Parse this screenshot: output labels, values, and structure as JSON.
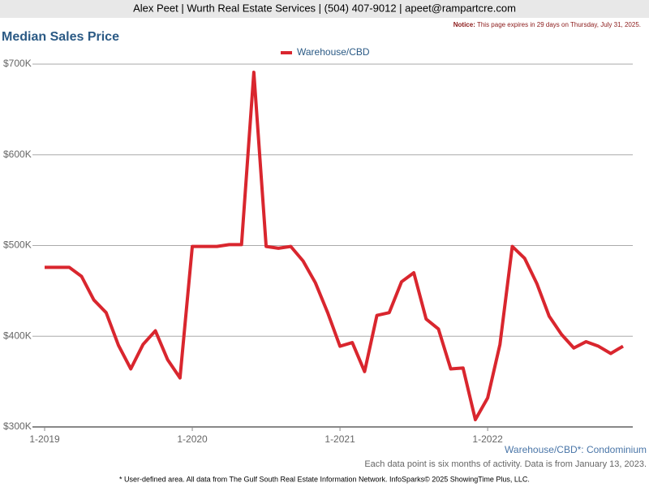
{
  "header": {
    "text": "Alex Peet | Wurth Real Estate Services | (504) 407-9012 | apeet@rampartcre.com"
  },
  "notice": {
    "label": "Notice:",
    "text": "This page expires in 29 days on Thursday, July 31, 2025."
  },
  "chart_data": {
    "type": "line",
    "title": "Median Sales Price",
    "categories": [
      "1-2019",
      null,
      null,
      null,
      null,
      null,
      null,
      null,
      null,
      null,
      null,
      null,
      "1-2020",
      null,
      null,
      null,
      null,
      null,
      null,
      null,
      null,
      null,
      null,
      null,
      "1-2021",
      null,
      null,
      null,
      null,
      null,
      null,
      null,
      null,
      null,
      null,
      null,
      "1-2022",
      null,
      null,
      null,
      null,
      null,
      null,
      null,
      null,
      null,
      null,
      null
    ],
    "series": [
      {
        "name": "Warehouse/CBD",
        "color": "#d9262e",
        "values": [
          476000,
          476000,
          476000,
          466000,
          440000,
          426000,
          390000,
          364000,
          391000,
          406000,
          374000,
          354000,
          499000,
          499000,
          499000,
          501000,
          501000,
          691000,
          499000,
          497000,
          499000,
          483000,
          459000,
          426000,
          389000,
          393000,
          361000,
          423000,
          426000,
          460000,
          470000,
          419000,
          408000,
          364000,
          365000,
          308000,
          332000,
          391000,
          499000,
          486000,
          458000,
          422000,
          402000,
          387000,
          394000,
          389000,
          381000,
          389000
        ]
      }
    ],
    "ylim": [
      300000,
      700000
    ],
    "yticks": [
      {
        "value": 300000,
        "label": "$300K"
      },
      {
        "value": 400000,
        "label": "$400K"
      },
      {
        "value": 500000,
        "label": "$500K"
      },
      {
        "value": 600000,
        "label": "$600K"
      },
      {
        "value": 700000,
        "label": "$700K"
      }
    ],
    "grid": true,
    "legend": "top",
    "area_label": "Warehouse/CBD*: Condominium",
    "note": "Each data point is six months of activity. Data is from January 13, 2023."
  },
  "footer": {
    "text": "* User-defined area. All data from The Gulf South Real Estate Information Network. InfoSparks© 2025 ShowingTime Plus, LLC."
  }
}
